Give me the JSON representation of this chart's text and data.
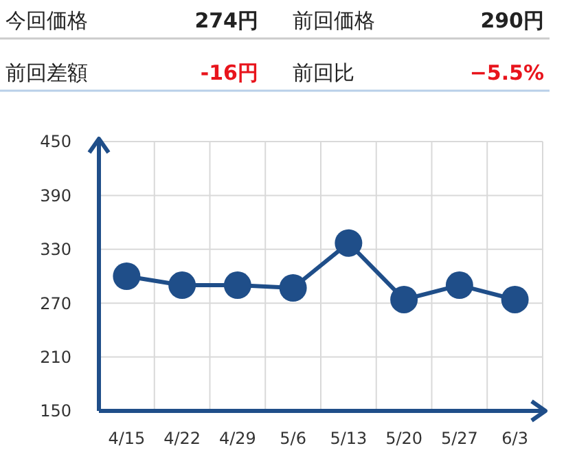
{
  "chart_data": [
    {
      "type": "other",
      "annotations": [
        "今回価格",
        "274円",
        "前回価格",
        "290円",
        "前回差額",
        "-16円",
        "前回比",
        "−5.5%"
      ]
    },
    {
      "type": "line",
      "categories": [
        "4/15",
        "4/22",
        "4/29",
        "5/6",
        "5/13",
        "5/20",
        "5/27",
        "6/3"
      ],
      "series": [
        {
          "color": "#1f4e89",
          "values": [
            300,
            290,
            290,
            287,
            337,
            274,
            290,
            274
          ]
        }
      ],
      "ylim": [
        150,
        450
      ],
      "yticks": [
        150,
        210,
        270,
        330,
        390,
        450
      ],
      "grid": true,
      "marker": "circle",
      "line_style": "solid"
    }
  ]
}
